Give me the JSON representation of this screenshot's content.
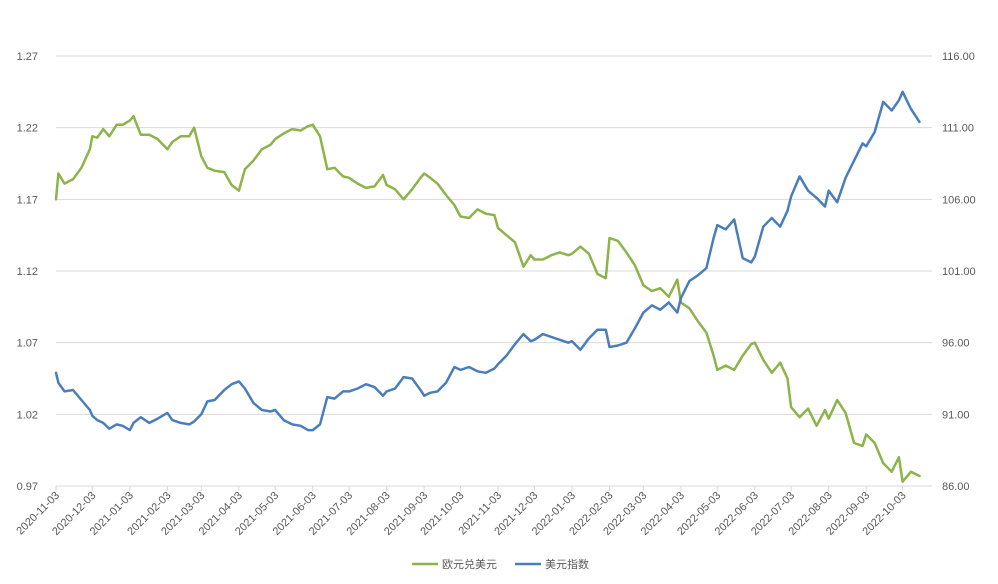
{
  "chart_data": {
    "type": "line",
    "title": "",
    "xlabel": "",
    "ylabel_left": "",
    "ylabel_right": "",
    "x_tick_labels": [
      "2020-11-03",
      "2020-12-03",
      "2021-01-03",
      "2021-02-03",
      "2021-03-03",
      "2021-04-03",
      "2021-05-03",
      "2021-06-03",
      "2021-07-03",
      "2021-08-03",
      "2021-09-03",
      "2021-10-03",
      "2021-11-03",
      "2021-12-03",
      "2022-01-03",
      "2022-02-03",
      "2022-03-03",
      "2022-04-03",
      "2022-05-03",
      "2022-06-03",
      "2022-07-03",
      "2022-08-03",
      "2022-09-03",
      "2022-10-03"
    ],
    "y_left": {
      "ylim": [
        0.97,
        1.27
      ],
      "ticks": [
        "0.97",
        "1.02",
        "1.07",
        "1.12",
        "1.17",
        "1.22",
        "1.27"
      ]
    },
    "y_right": {
      "ylim": [
        86,
        116
      ],
      "ticks": [
        "86.00",
        "91.00",
        "96.00",
        "101.00",
        "106.00",
        "111.00",
        "116.00"
      ]
    },
    "legend_position": "bottom",
    "grid": true,
    "series": [
      {
        "name": "欧元兑美元",
        "axis": "left",
        "color": "#8db34a",
        "x": [
          "2020-11-03",
          "2020-11-05",
          "2020-11-10",
          "2020-11-17",
          "2020-11-24",
          "2020-12-01",
          "2020-12-03",
          "2020-12-07",
          "2020-12-12",
          "2020-12-17",
          "2020-12-23",
          "2020-12-28",
          "2021-01-03",
          "2021-01-06",
          "2021-01-12",
          "2021-01-19",
          "2021-01-26",
          "2021-02-03",
          "2021-02-07",
          "2021-02-14",
          "2021-02-21",
          "2021-02-25",
          "2021-03-03",
          "2021-03-08",
          "2021-03-14",
          "2021-03-22",
          "2021-03-28",
          "2021-04-03",
          "2021-04-08",
          "2021-04-15",
          "2021-04-22",
          "2021-04-29",
          "2021-05-03",
          "2021-05-10",
          "2021-05-17",
          "2021-05-24",
          "2021-05-30",
          "2021-06-03",
          "2021-06-09",
          "2021-06-15",
          "2021-06-21",
          "2021-06-28",
          "2021-07-03",
          "2021-07-10",
          "2021-07-17",
          "2021-07-24",
          "2021-07-31",
          "2021-08-03",
          "2021-08-10",
          "2021-08-17",
          "2021-08-24",
          "2021-08-31",
          "2021-09-03",
          "2021-09-08",
          "2021-09-14",
          "2021-09-21",
          "2021-09-28",
          "2021-10-03",
          "2021-10-10",
          "2021-10-17",
          "2021-10-24",
          "2021-10-31",
          "2021-11-03",
          "2021-11-10",
          "2021-11-17",
          "2021-11-24",
          "2021-11-30",
          "2021-12-03",
          "2021-12-10",
          "2021-12-17",
          "2021-12-24",
          "2021-12-31",
          "2022-01-03",
          "2022-01-10",
          "2022-01-17",
          "2022-01-24",
          "2022-01-31",
          "2022-02-03",
          "2022-02-10",
          "2022-02-17",
          "2022-02-24",
          "2022-03-03",
          "2022-03-10",
          "2022-03-17",
          "2022-03-24",
          "2022-03-31",
          "2022-04-03",
          "2022-04-10",
          "2022-04-17",
          "2022-04-24",
          "2022-04-30",
          "2022-05-03",
          "2022-05-10",
          "2022-05-17",
          "2022-05-24",
          "2022-05-31",
          "2022-06-03",
          "2022-06-10",
          "2022-06-17",
          "2022-06-24",
          "2022-06-30",
          "2022-07-03",
          "2022-07-10",
          "2022-07-17",
          "2022-07-24",
          "2022-07-31",
          "2022-08-03",
          "2022-08-10",
          "2022-08-17",
          "2022-08-24",
          "2022-08-31",
          "2022-09-03",
          "2022-09-10",
          "2022-09-17",
          "2022-09-24",
          "2022-09-30",
          "2022-10-03",
          "2022-10-10",
          "2022-10-17"
        ],
        "values": [
          1.17,
          1.188,
          1.181,
          1.184,
          1.192,
          1.205,
          1.214,
          1.213,
          1.219,
          1.214,
          1.222,
          1.222,
          1.225,
          1.228,
          1.215,
          1.215,
          1.212,
          1.205,
          1.21,
          1.214,
          1.214,
          1.22,
          1.2,
          1.192,
          1.19,
          1.189,
          1.18,
          1.176,
          1.191,
          1.197,
          1.205,
          1.208,
          1.212,
          1.216,
          1.219,
          1.218,
          1.221,
          1.222,
          1.214,
          1.191,
          1.192,
          1.186,
          1.185,
          1.181,
          1.178,
          1.179,
          1.187,
          1.18,
          1.177,
          1.17,
          1.177,
          1.185,
          1.188,
          1.185,
          1.181,
          1.173,
          1.166,
          1.158,
          1.157,
          1.163,
          1.16,
          1.159,
          1.15,
          1.145,
          1.14,
          1.123,
          1.131,
          1.128,
          1.128,
          1.131,
          1.133,
          1.131,
          1.132,
          1.137,
          1.132,
          1.118,
          1.115,
          1.143,
          1.141,
          1.133,
          1.124,
          1.11,
          1.106,
          1.108,
          1.102,
          1.114,
          1.098,
          1.094,
          1.085,
          1.077,
          1.061,
          1.051,
          1.054,
          1.051,
          1.061,
          1.069,
          1.07,
          1.058,
          1.049,
          1.056,
          1.045,
          1.025,
          1.018,
          1.024,
          1.012,
          1.023,
          1.017,
          1.03,
          1.021,
          1.0,
          0.998,
          1.006,
          1.0,
          0.986,
          0.98,
          0.99,
          0.973,
          0.98,
          0.977
        ]
      },
      {
        "name": "美元指数",
        "axis": "right",
        "color": "#4a7ebb",
        "x": [
          "2020-11-03",
          "2020-11-05",
          "2020-11-10",
          "2020-11-17",
          "2020-11-24",
          "2020-12-01",
          "2020-12-03",
          "2020-12-07",
          "2020-12-12",
          "2020-12-17",
          "2020-12-23",
          "2020-12-28",
          "2021-01-03",
          "2021-01-06",
          "2021-01-12",
          "2021-01-19",
          "2021-01-26",
          "2021-02-03",
          "2021-02-07",
          "2021-02-14",
          "2021-02-21",
          "2021-02-25",
          "2021-03-03",
          "2021-03-08",
          "2021-03-14",
          "2021-03-22",
          "2021-03-28",
          "2021-04-03",
          "2021-04-08",
          "2021-04-15",
          "2021-04-22",
          "2021-04-29",
          "2021-05-03",
          "2021-05-10",
          "2021-05-17",
          "2021-05-24",
          "2021-05-30",
          "2021-06-03",
          "2021-06-09",
          "2021-06-15",
          "2021-06-21",
          "2021-06-28",
          "2021-07-03",
          "2021-07-10",
          "2021-07-17",
          "2021-07-24",
          "2021-07-31",
          "2021-08-03",
          "2021-08-10",
          "2021-08-17",
          "2021-08-24",
          "2021-08-31",
          "2021-09-03",
          "2021-09-08",
          "2021-09-14",
          "2021-09-21",
          "2021-09-28",
          "2021-10-03",
          "2021-10-10",
          "2021-10-17",
          "2021-10-24",
          "2021-10-31",
          "2021-11-03",
          "2021-11-10",
          "2021-11-17",
          "2021-11-24",
          "2021-11-30",
          "2021-12-03",
          "2021-12-10",
          "2021-12-17",
          "2021-12-24",
          "2021-12-31",
          "2022-01-03",
          "2022-01-10",
          "2022-01-17",
          "2022-01-24",
          "2022-01-31",
          "2022-02-03",
          "2022-02-10",
          "2022-02-17",
          "2022-02-24",
          "2022-03-03",
          "2022-03-10",
          "2022-03-17",
          "2022-03-24",
          "2022-03-31",
          "2022-04-03",
          "2022-04-10",
          "2022-04-17",
          "2022-04-24",
          "2022-04-30",
          "2022-05-03",
          "2022-05-10",
          "2022-05-17",
          "2022-05-24",
          "2022-05-31",
          "2022-06-03",
          "2022-06-10",
          "2022-06-17",
          "2022-06-24",
          "2022-06-30",
          "2022-07-03",
          "2022-07-10",
          "2022-07-17",
          "2022-07-24",
          "2022-07-31",
          "2022-08-03",
          "2022-08-10",
          "2022-08-17",
          "2022-08-24",
          "2022-08-31",
          "2022-09-03",
          "2022-09-10",
          "2022-09-17",
          "2022-09-24",
          "2022-09-30",
          "2022-10-03",
          "2022-10-10",
          "2022-10-17"
        ],
        "values": [
          93.9,
          93.2,
          92.6,
          92.7,
          92.0,
          91.3,
          90.9,
          90.6,
          90.4,
          90.0,
          90.3,
          90.2,
          89.9,
          90.4,
          90.8,
          90.4,
          90.7,
          91.1,
          90.6,
          90.4,
          90.3,
          90.5,
          91.0,
          91.9,
          92.0,
          92.7,
          93.1,
          93.3,
          92.8,
          91.8,
          91.3,
          91.2,
          91.3,
          90.6,
          90.3,
          90.2,
          89.9,
          89.9,
          90.3,
          92.2,
          92.1,
          92.6,
          92.6,
          92.8,
          93.1,
          92.9,
          92.3,
          92.6,
          92.8,
          93.6,
          93.5,
          92.7,
          92.3,
          92.5,
          92.6,
          93.2,
          94.3,
          94.1,
          94.3,
          94.0,
          93.9,
          94.2,
          94.5,
          95.1,
          95.9,
          96.6,
          96.1,
          96.2,
          96.6,
          96.4,
          96.2,
          96.0,
          96.1,
          95.5,
          96.3,
          96.9,
          96.9,
          95.7,
          95.8,
          96.0,
          97.0,
          98.1,
          98.6,
          98.3,
          98.8,
          98.1,
          99.1,
          100.3,
          100.7,
          101.2,
          103.3,
          104.2,
          103.9,
          104.6,
          101.9,
          101.6,
          102.0,
          104.1,
          104.7,
          104.1,
          105.2,
          106.2,
          107.6,
          106.6,
          106.1,
          105.5,
          106.6,
          105.8,
          107.5,
          108.7,
          109.9,
          109.7,
          110.7,
          112.8,
          112.2,
          112.9,
          113.5,
          112.3,
          111.4
        ]
      }
    ]
  }
}
